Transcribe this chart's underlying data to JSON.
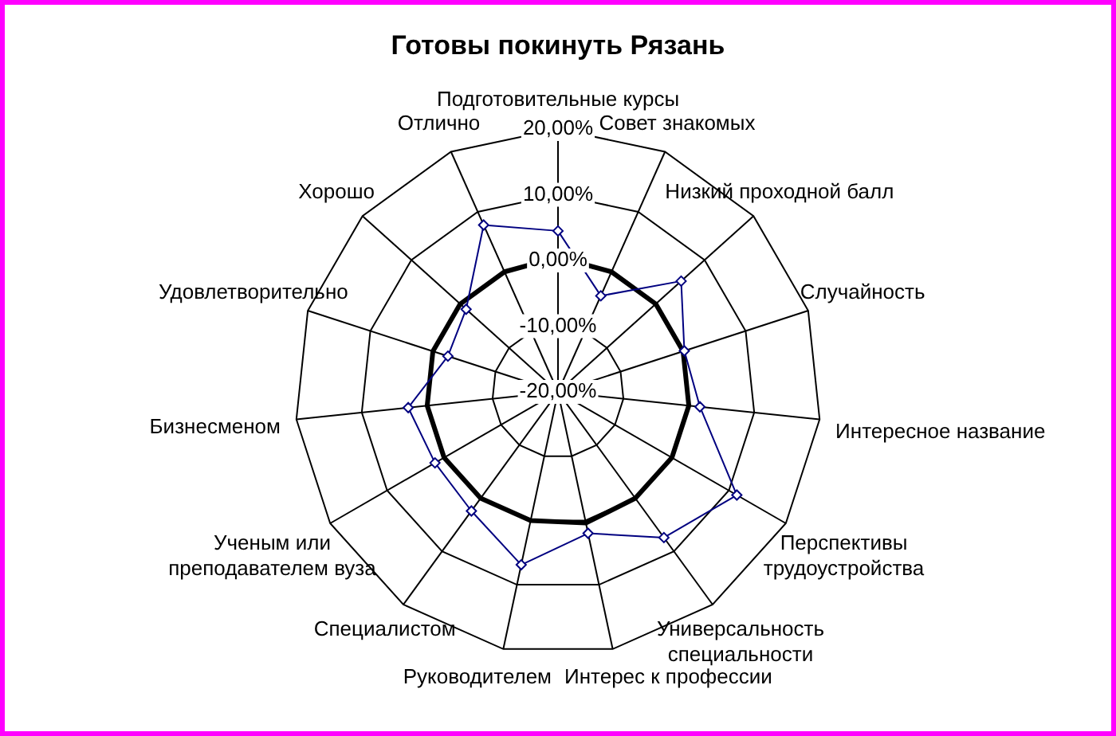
{
  "chart_data": {
    "type": "radar",
    "title": "Готовы покинуть Рязань",
    "categories": [
      "Подготовительные курсы",
      "Совет знакомых",
      "Низкий проходной балл",
      "Случайность",
      "Интересное название",
      "Перспективы трудоустройства",
      "Универсальность специальности",
      "Интерес к профессии",
      "Руководителем",
      "Специалистом",
      "Ученым или преподавателем вуза",
      "Бизнесменом",
      "Удовлетворительно",
      "Хорошо",
      "Отлично"
    ],
    "series": [
      {
        "color": "#000080",
        "marker": "diamond",
        "values": [
          4.5,
          -4,
          5.2,
          0.2,
          1.7,
          11.4,
          7.4,
          2,
          6.9,
          2.4,
          1.6,
          2.9,
          -2.4,
          -1.2,
          7.8
        ]
      },
      {
        "color": "#000000",
        "values": [
          0.5,
          0,
          0,
          0,
          0,
          0,
          0,
          0.4,
          0,
          0,
          0,
          0,
          0,
          0,
          0
        ]
      }
    ],
    "ylim": [
      -20,
      20
    ],
    "yticks": [
      {
        "value": -20,
        "label": "-20,00%"
      },
      {
        "value": -10,
        "label": "-10,00%"
      },
      {
        "value": 0,
        "label": "0,00%"
      },
      {
        "value": 10,
        "label": "10,00%"
      },
      {
        "value": 20,
        "label": "20,00%"
      }
    ],
    "grid": true,
    "legend": false
  }
}
